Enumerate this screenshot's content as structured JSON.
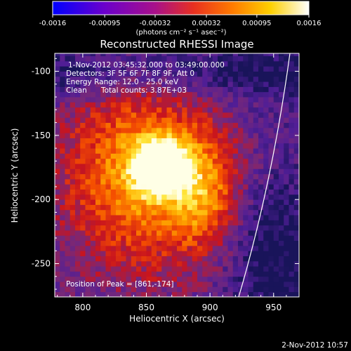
{
  "colorbar": {
    "ticks": [
      "-0.0016",
      "-0.00095",
      "-0.00032",
      "0.00032",
      "0.00095",
      "0.0016"
    ],
    "units": "(photons cm⁻² s⁻¹ asec⁻²)"
  },
  "chart_data": {
    "type": "heatmap",
    "title": "Reconstructed RHESSI Image",
    "xlabel": "Heliocentric X (arcsec)",
    "ylabel": "Heliocentric Y (arcsec)",
    "xlim": [
      778,
      970
    ],
    "ylim": [
      -276,
      -86
    ],
    "xticks": [
      800,
      850,
      900,
      950
    ],
    "yticks": [
      -100,
      -150,
      -200,
      -250
    ],
    "clim": [
      -0.0016,
      0.0016
    ],
    "colormap": "blue-purple-red-orange-yellow-white",
    "peak": {
      "x": 861,
      "y": -174
    },
    "annotations": {
      "time_range": "1-Nov-2012 03:45:32.000 to 03:49:00.000",
      "detectors": "Detectors: 3F 5F 6F 7F 8F 9F, Att 0",
      "energy": "Energy Range: 12.0 - 25.0 keV",
      "method": "Clean",
      "counts": "Total counts: 3.87E+03",
      "peak_label": "Position of Peak = [861,-174]"
    }
  },
  "footer": {
    "date": "2-Nov-2012 10:57"
  }
}
